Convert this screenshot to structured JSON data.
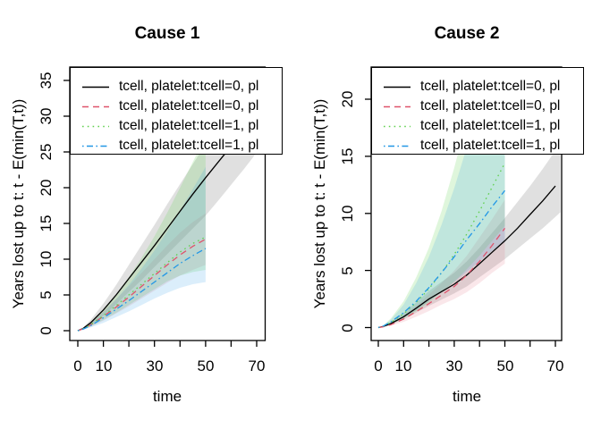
{
  "figure": {
    "background": "#ffffff"
  },
  "chart_data": [
    {
      "type": "line",
      "title": "Cause 1",
      "xlabel": "time",
      "ylabel": "Years lost up to t: t - E(min(T,t))",
      "xlim": [
        0,
        70
      ],
      "ylim": [
        0,
        35
      ],
      "grid": false,
      "x_ticks": [
        0,
        10,
        20,
        30,
        40,
        50,
        60,
        70
      ],
      "x_tick_labels": [
        "0",
        "10",
        "",
        "30",
        "",
        "50",
        "",
        "70"
      ],
      "y_ticks": [
        0,
        5,
        10,
        15,
        20,
        25,
        30,
        35
      ],
      "y_tick_labels": [
        "0",
        "5",
        "10",
        "15",
        "20",
        "25",
        "30",
        "35"
      ],
      "legend": {
        "position": "topleft",
        "entries": [
          {
            "label": "tcell, platelet:tcell=0, pl",
            "color": "#000000",
            "linetype": "solid"
          },
          {
            "label": "tcell, platelet:tcell=0, pl",
            "color": "#DF536B",
            "linetype": "dashed"
          },
          {
            "label": "tcell, platelet:tcell=1, pl",
            "color": "#61D04F",
            "linetype": "dotted"
          },
          {
            "label": "tcell, platelet:tcell=1, pl",
            "color": "#2297E6",
            "linetype": "dotdash"
          }
        ]
      },
      "series": [
        {
          "name": "tcell, platelet:tcell=0, pl",
          "color": "#000000",
          "linetype": "solid",
          "x": [
            0,
            2,
            5,
            10,
            15,
            20,
            25,
            30,
            35,
            40,
            45,
            50,
            55,
            60,
            65,
            70
          ],
          "y": [
            0,
            0.3,
            1.1,
            2.9,
            5.0,
            7.3,
            9.6,
            11.9,
            14.3,
            16.7,
            19.1,
            21.4,
            23.6,
            25.8,
            28.0,
            30.2
          ],
          "band_x": [
            0,
            2,
            5,
            10,
            15,
            20,
            25,
            30,
            35,
            40,
            45,
            50,
            55,
            60,
            65,
            70,
            72
          ],
          "band_lower": [
            0,
            0.2,
            0.8,
            2.1,
            3.7,
            5.4,
            7.1,
            8.9,
            10.7,
            12.5,
            14.3,
            16.1,
            18.2,
            20.4,
            22.6,
            24.9,
            25.9
          ],
          "band_upper": [
            0,
            0.4,
            1.5,
            3.8,
            6.4,
            9.2,
            12.0,
            14.8,
            17.7,
            20.5,
            23.3,
            26.1,
            28.6,
            31.1,
            33.6,
            36.1,
            37.1
          ]
        },
        {
          "name": "tcell, platelet:tcell=0, pl",
          "color": "#DF536B",
          "linetype": "dashed",
          "x": [
            0,
            2,
            5,
            10,
            15,
            20,
            25,
            30,
            35,
            40,
            45,
            50
          ],
          "y": [
            0,
            0.25,
            0.8,
            2.0,
            3.3,
            4.7,
            6.2,
            7.7,
            9.2,
            10.6,
            11.8,
            12.8
          ],
          "band_lower": [
            0,
            0.15,
            0.55,
            1.4,
            2.4,
            3.4,
            4.5,
            5.6,
            6.7,
            7.7,
            8.5,
            9.2
          ],
          "band_upper": [
            0,
            0.35,
            1.1,
            2.7,
            4.4,
            6.2,
            8.1,
            10.0,
            11.9,
            13.7,
            15.2,
            16.4
          ]
        },
        {
          "name": "tcell, platelet:tcell=1, pl",
          "color": "#61D04F",
          "linetype": "dotted",
          "x": [
            0,
            2,
            5,
            10,
            15,
            20,
            25,
            30,
            35,
            40,
            45,
            50
          ],
          "y": [
            0,
            0.25,
            0.85,
            2.1,
            3.5,
            5.0,
            6.5,
            8.0,
            9.5,
            11.0,
            12.2,
            13.1
          ],
          "band_lower": [
            0,
            0.15,
            0.6,
            1.5,
            2.5,
            3.6,
            4.7,
            5.8,
            6.9,
            7.7,
            8.2,
            8.5
          ],
          "band_upper": [
            0,
            0.35,
            1.2,
            3.0,
            5.1,
            7.5,
            10.2,
            13.2,
            16.5,
            20.0,
            23.6,
            27.2
          ]
        },
        {
          "name": "tcell, platelet:tcell=1, pl",
          "color": "#2297E6",
          "linetype": "dotdash",
          "x": [
            0,
            2,
            5,
            10,
            15,
            20,
            25,
            30,
            35,
            40,
            45,
            50
          ],
          "y": [
            0,
            0.2,
            0.7,
            1.8,
            3.0,
            4.2,
            5.5,
            6.8,
            8.1,
            9.4,
            10.5,
            11.5
          ],
          "band_lower": [
            0,
            0.12,
            0.45,
            1.1,
            1.9,
            2.7,
            3.6,
            4.5,
            5.3,
            6.0,
            6.5,
            6.8
          ],
          "band_upper": [
            0,
            0.3,
            1.0,
            2.6,
            4.4,
            6.4,
            8.7,
            11.2,
            13.9,
            16.8,
            19.8,
            22.9
          ]
        }
      ]
    },
    {
      "type": "line",
      "title": "Cause 2",
      "xlabel": "time",
      "ylabel": "Years lost up to t: t - E(min(T,t))",
      "xlim": [
        0,
        70
      ],
      "ylim": [
        0,
        22
      ],
      "grid": false,
      "x_ticks": [
        0,
        10,
        20,
        30,
        40,
        50,
        60,
        70
      ],
      "x_tick_labels": [
        "0",
        "10",
        "",
        "30",
        "",
        "50",
        "",
        "70"
      ],
      "y_ticks": [
        0,
        5,
        10,
        15,
        20
      ],
      "y_tick_labels": [
        "0",
        "5",
        "10",
        "15",
        "20"
      ],
      "legend": {
        "position": "topleft",
        "entries": [
          {
            "label": "tcell, platelet:tcell=0, pl",
            "color": "#000000",
            "linetype": "solid"
          },
          {
            "label": "tcell, platelet:tcell=0, pl",
            "color": "#DF536B",
            "linetype": "dashed"
          },
          {
            "label": "tcell, platelet:tcell=1, pl",
            "color": "#61D04F",
            "linetype": "dotted"
          },
          {
            "label": "tcell, platelet:tcell=1, pl",
            "color": "#2297E6",
            "linetype": "dotdash"
          }
        ]
      },
      "series": [
        {
          "name": "tcell, platelet:tcell=0, pl",
          "color": "#000000",
          "linetype": "solid",
          "x": [
            0,
            2,
            5,
            10,
            15,
            20,
            25,
            30,
            35,
            40,
            45,
            50,
            55,
            60,
            65,
            70
          ],
          "y": [
            0,
            0.1,
            0.35,
            0.95,
            1.7,
            2.5,
            3.15,
            3.8,
            4.6,
            5.6,
            6.6,
            7.6,
            8.7,
            9.9,
            11.1,
            12.4
          ],
          "band_x": [
            0,
            2,
            5,
            10,
            15,
            20,
            25,
            30,
            35,
            40,
            45,
            50,
            55,
            60,
            65,
            70,
            72
          ],
          "band_lower": [
            0,
            0.07,
            0.25,
            0.7,
            1.3,
            1.9,
            2.45,
            3.0,
            3.6,
            4.4,
            5.2,
            6.0,
            6.9,
            7.8,
            8.7,
            9.7,
            10.1
          ],
          "band_upper": [
            0,
            0.13,
            0.5,
            1.3,
            2.2,
            3.2,
            4.0,
            4.8,
            5.8,
            7.0,
            8.3,
            9.6,
            11.0,
            12.4,
            13.9,
            15.5,
            16.2
          ]
        },
        {
          "name": "tcell, platelet:tcell=0, pl",
          "color": "#DF536B",
          "linetype": "dashed",
          "x": [
            0,
            2,
            5,
            10,
            15,
            20,
            25,
            30,
            35,
            40,
            45,
            50
          ],
          "y": [
            0,
            0.07,
            0.25,
            0.75,
            1.4,
            2.1,
            2.85,
            3.6,
            4.6,
            5.8,
            7.2,
            8.7
          ],
          "band_lower": [
            0,
            0.05,
            0.17,
            0.5,
            0.95,
            1.45,
            2.0,
            2.5,
            3.1,
            3.9,
            4.8,
            5.6
          ],
          "band_upper": [
            0,
            0.1,
            0.35,
            1.05,
            1.9,
            2.9,
            3.9,
            5.0,
            6.3,
            7.9,
            9.5,
            11.2
          ]
        },
        {
          "name": "tcell, platelet:tcell=1, pl",
          "color": "#61D04F",
          "linetype": "dotted",
          "x": [
            0,
            2,
            5,
            10,
            15,
            20,
            25,
            30,
            35,
            40,
            45,
            50
          ],
          "y": [
            0,
            0.12,
            0.45,
            1.2,
            2.2,
            3.4,
            4.8,
            6.4,
            8.2,
            10.2,
            12.3,
            14.4
          ],
          "band_lower": [
            0,
            0.08,
            0.3,
            0.8,
            1.45,
            2.2,
            3.1,
            4.0,
            5.1,
            6.3,
            7.6,
            8.9
          ],
          "band_upper": [
            0,
            0.2,
            0.8,
            2.3,
            4.4,
            7.0,
            10.2,
            14.0,
            18.2,
            22.8,
            27.6,
            32.6
          ]
        },
        {
          "name": "tcell, platelet:tcell=1, pl",
          "color": "#2297E6",
          "linetype": "dotdash",
          "x": [
            0,
            2,
            5,
            10,
            15,
            20,
            25,
            30,
            35,
            40,
            45,
            50
          ],
          "y": [
            0,
            0.13,
            0.5,
            1.3,
            2.3,
            3.5,
            4.8,
            6.2,
            7.7,
            9.1,
            10.6,
            12.0
          ],
          "band_lower": [
            0,
            0.09,
            0.33,
            0.85,
            1.5,
            2.3,
            3.1,
            4.0,
            4.9,
            5.8,
            6.7,
            7.5
          ],
          "band_upper": [
            0,
            0.18,
            0.7,
            2.0,
            3.9,
            6.2,
            9.0,
            12.2,
            15.8,
            19.6,
            23.6,
            27.8
          ]
        }
      ]
    }
  ]
}
